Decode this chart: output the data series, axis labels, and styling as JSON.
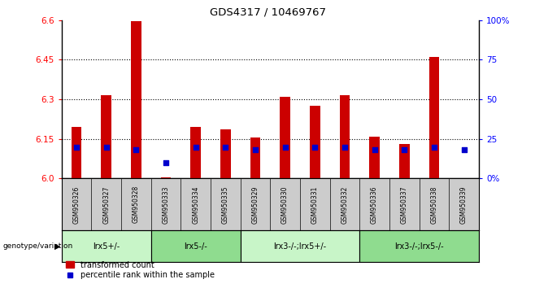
{
  "title": "GDS4317 / 10469767",
  "samples": [
    "GSM950326",
    "GSM950327",
    "GSM950328",
    "GSM950333",
    "GSM950334",
    "GSM950335",
    "GSM950329",
    "GSM950330",
    "GSM950331",
    "GSM950332",
    "GSM950336",
    "GSM950337",
    "GSM950338",
    "GSM950339"
  ],
  "red_values": [
    6.195,
    6.315,
    6.595,
    6.005,
    6.195,
    6.185,
    6.155,
    6.31,
    6.275,
    6.315,
    6.16,
    6.13,
    6.46,
    6.0
  ],
  "blue_percentiles": [
    20,
    20,
    18,
    10,
    20,
    20,
    18,
    20,
    20,
    20,
    18,
    18,
    20,
    18
  ],
  "ylim_left": [
    6.0,
    6.6
  ],
  "ylim_right": [
    0,
    100
  ],
  "yticks_left": [
    6.0,
    6.15,
    6.3,
    6.45,
    6.6
  ],
  "yticks_right": [
    0,
    25,
    50,
    75,
    100
  ],
  "groups": [
    {
      "label": "lrx5+/-",
      "indices": [
        0,
        1,
        2
      ]
    },
    {
      "label": "lrx5-/-",
      "indices": [
        3,
        4,
        5
      ]
    },
    {
      "label": "lrx3-/-;lrx5+/-",
      "indices": [
        6,
        7,
        8,
        9
      ]
    },
    {
      "label": "lrx3-/-;lrx5-/-",
      "indices": [
        10,
        11,
        12,
        13
      ]
    }
  ],
  "group_colors": [
    "#c8f5c8",
    "#8fdc8f",
    "#c8f5c8",
    "#8fdc8f"
  ],
  "bar_width": 0.35,
  "red_color": "#cc0000",
  "blue_color": "#0000cc",
  "sample_bg_color": "#cccccc",
  "genotype_label": "genotype/variation",
  "legend_red": "transformed count",
  "legend_blue": "percentile rank within the sample",
  "base_value": 6.0,
  "dotted_lines": [
    6.15,
    6.3,
    6.45
  ]
}
